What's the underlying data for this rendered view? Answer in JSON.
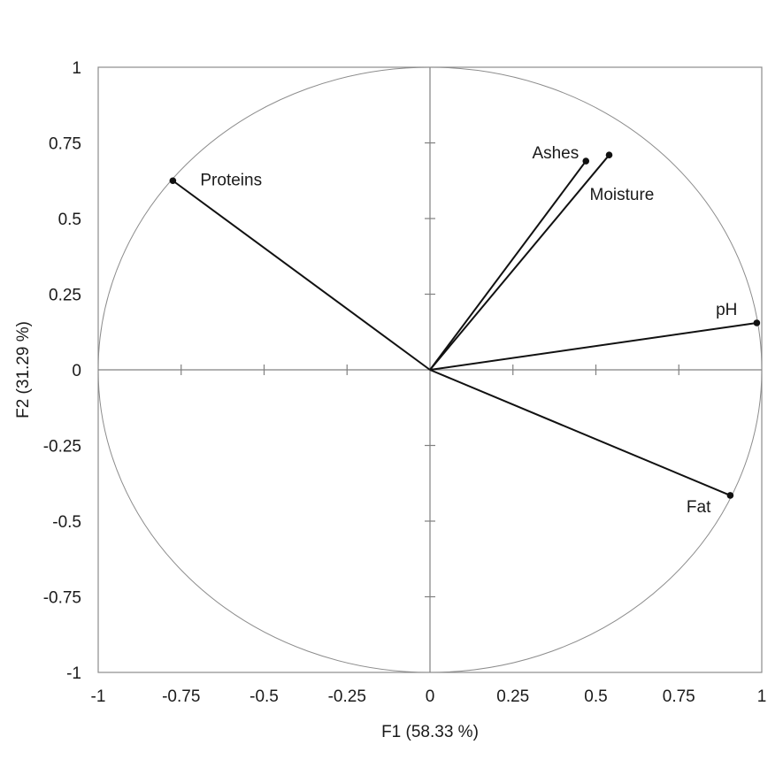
{
  "chart_data": {
    "type": "scatter",
    "subtype": "correlation-circle",
    "title": "",
    "xlabel": "F1 (58.33 %)",
    "ylabel": "F2 (31.29 %)",
    "xlim": [
      -1,
      1
    ],
    "ylim": [
      -1,
      1
    ],
    "xticks": [
      -1,
      -0.75,
      -0.5,
      -0.25,
      0,
      0.25,
      0.5,
      0.75,
      1
    ],
    "yticks": [
      -1,
      -0.75,
      -0.5,
      -0.25,
      0,
      0.25,
      0.5,
      0.75,
      1
    ],
    "xtick_labels": [
      "-1",
      "-0.75",
      "-0.5",
      "-0.25",
      "0",
      "0.25",
      "0.5",
      "0.75",
      "1"
    ],
    "ytick_labels": [
      "-1",
      "-0.75",
      "-0.5",
      "-0.25",
      "0",
      "0.25",
      "0.5",
      "0.75",
      "1"
    ],
    "unit_circle": true,
    "grid": false,
    "variables": [
      {
        "name": "Proteins",
        "x": -0.775,
        "y": 0.625
      },
      {
        "name": "Ashes",
        "x": 0.47,
        "y": 0.69
      },
      {
        "name": "Moisture",
        "x": 0.54,
        "y": 0.71
      },
      {
        "name": "pH",
        "x": 0.985,
        "y": 0.155
      },
      {
        "name": "Fat",
        "x": 0.905,
        "y": -0.415
      }
    ]
  },
  "colors": {
    "frame": "#8c8c8c",
    "axis": "#808080",
    "circle": "#8c8c8c",
    "vector": "#111111",
    "text": "#1a1a1a"
  }
}
